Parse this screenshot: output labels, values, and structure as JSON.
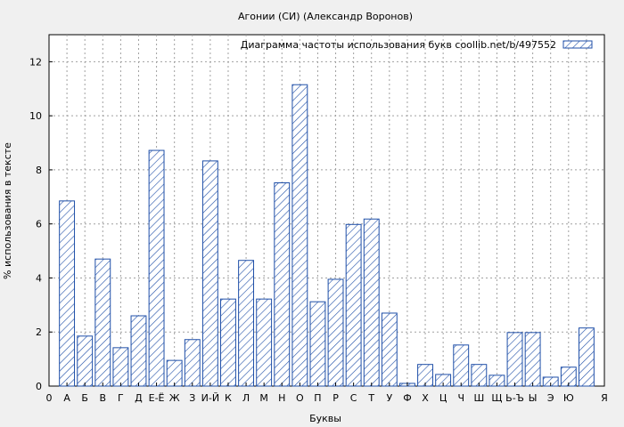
{
  "chart_data": {
    "type": "bar",
    "title": "Агонии (СИ) (Александр Воронов)",
    "xlabel": "Буквы",
    "ylabel": "% использования в тексте",
    "legend": "Диаграмма частоты использования букв  coollib.net/b/497552",
    "legend_position": "top-right",
    "grid": true,
    "ylim": [
      0,
      13
    ],
    "yticks": [
      0,
      2,
      4,
      6,
      8,
      10,
      12
    ],
    "x_edge_labels": [
      "0",
      "Я"
    ],
    "bar_color": "#1f4fa8",
    "categories": [
      "А",
      "Б",
      "В",
      "Г",
      "Д",
      "Е-Ё",
      "Ж",
      "З",
      "И-Й",
      "К",
      "Л",
      "М",
      "Н",
      "О",
      "П",
      "Р",
      "С",
      "Т",
      "У",
      "Ф",
      "Х",
      "Ц",
      "Ч",
      "Ш",
      "Щ",
      "Ь-Ъ",
      "Ы",
      "Э",
      "Ю",
      "Я"
    ],
    "values": [
      6.85,
      1.85,
      4.7,
      1.42,
      2.6,
      8.72,
      0.95,
      1.72,
      8.33,
      3.22,
      4.65,
      3.22,
      7.52,
      11.15,
      3.12,
      3.95,
      5.98,
      6.18,
      2.7,
      0.1,
      0.8,
      0.43,
      1.52,
      0.8,
      0.4,
      1.98,
      1.98,
      0.33,
      0.7,
      2.15
    ]
  }
}
